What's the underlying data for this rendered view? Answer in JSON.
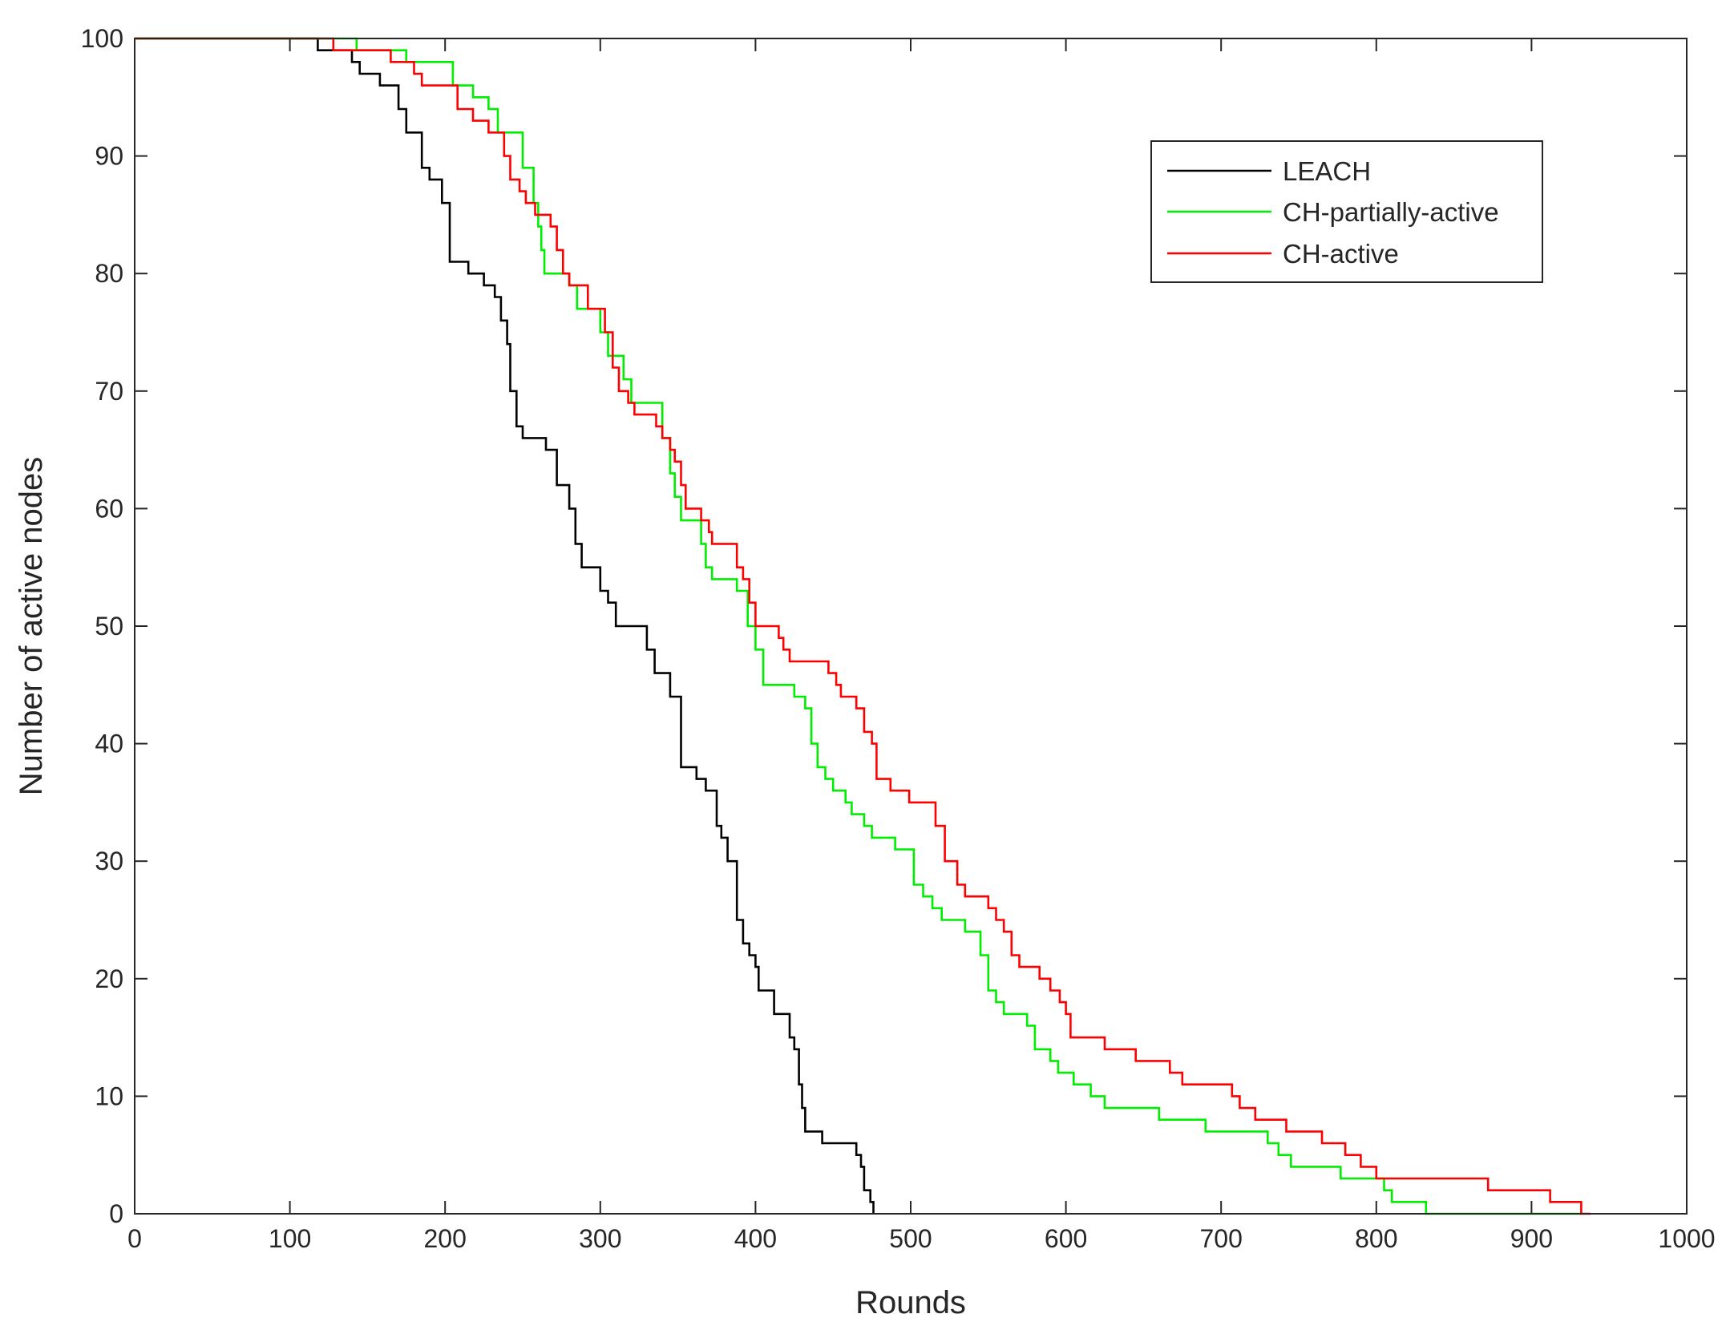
{
  "chart_data": {
    "type": "line",
    "title": "",
    "xlabel": "Rounds",
    "ylabel": "Number of active nodes",
    "xlim": [
      0,
      1000
    ],
    "ylim": [
      0,
      100
    ],
    "xticks": [
      0,
      100,
      200,
      300,
      400,
      500,
      600,
      700,
      800,
      900,
      1000
    ],
    "yticks": [
      0,
      10,
      20,
      30,
      40,
      50,
      60,
      70,
      80,
      90,
      100
    ],
    "grid": false,
    "legend": "top-right",
    "series": [
      {
        "name": "LEACH",
        "color": "#000000",
        "step": true,
        "points": [
          [
            0,
            100
          ],
          [
            116,
            100
          ],
          [
            118,
            99
          ],
          [
            135,
            99
          ],
          [
            140,
            98
          ],
          [
            145,
            97
          ],
          [
            155,
            97
          ],
          [
            158,
            96
          ],
          [
            167,
            96
          ],
          [
            170,
            94
          ],
          [
            175,
            92
          ],
          [
            180,
            92
          ],
          [
            185,
            89
          ],
          [
            190,
            88
          ],
          [
            195,
            88
          ],
          [
            198,
            86
          ],
          [
            201,
            86
          ],
          [
            203,
            81
          ],
          [
            212,
            81
          ],
          [
            215,
            80
          ],
          [
            220,
            80
          ],
          [
            225,
            79
          ],
          [
            230,
            79
          ],
          [
            232,
            78
          ],
          [
            236,
            76
          ],
          [
            240,
            74
          ],
          [
            242,
            70
          ],
          [
            246,
            67
          ],
          [
            250,
            66
          ],
          [
            262,
            66
          ],
          [
            265,
            65
          ],
          [
            272,
            62
          ],
          [
            277,
            62
          ],
          [
            280,
            60
          ],
          [
            284,
            57
          ],
          [
            288,
            55
          ],
          [
            295,
            55
          ],
          [
            300,
            53
          ],
          [
            305,
            52
          ],
          [
            310,
            50
          ],
          [
            325,
            50
          ],
          [
            330,
            48
          ],
          [
            335,
            46
          ],
          [
            340,
            46
          ],
          [
            345,
            44
          ],
          [
            350,
            44
          ],
          [
            352,
            38
          ],
          [
            358,
            38
          ],
          [
            362,
            37
          ],
          [
            368,
            36
          ],
          [
            372,
            36
          ],
          [
            375,
            33
          ],
          [
            378,
            32
          ],
          [
            382,
            30
          ],
          [
            386,
            30
          ],
          [
            388,
            25
          ],
          [
            392,
            23
          ],
          [
            396,
            22
          ],
          [
            400,
            21
          ],
          [
            402,
            19
          ],
          [
            410,
            19
          ],
          [
            412,
            17
          ],
          [
            418,
            17
          ],
          [
            422,
            15
          ],
          [
            425,
            14
          ],
          [
            428,
            11
          ],
          [
            430,
            9
          ],
          [
            432,
            7
          ],
          [
            440,
            7
          ],
          [
            443,
            6
          ],
          [
            462,
            6
          ],
          [
            465,
            5
          ],
          [
            468,
            4
          ],
          [
            470,
            2
          ],
          [
            474,
            1
          ],
          [
            476,
            0
          ]
        ]
      },
      {
        "name": "CH-partially-active",
        "color": "#00ee00",
        "step": true,
        "points": [
          [
            0,
            100
          ],
          [
            140,
            100
          ],
          [
            143,
            99
          ],
          [
            173,
            99
          ],
          [
            175,
            98
          ],
          [
            202,
            98
          ],
          [
            205,
            96
          ],
          [
            215,
            96
          ],
          [
            218,
            95
          ],
          [
            224,
            95
          ],
          [
            228,
            94
          ],
          [
            234,
            92
          ],
          [
            245,
            92
          ],
          [
            250,
            89
          ],
          [
            257,
            86
          ],
          [
            260,
            84
          ],
          [
            262,
            82
          ],
          [
            264,
            80
          ],
          [
            275,
            80
          ],
          [
            280,
            79
          ],
          [
            285,
            77
          ],
          [
            300,
            75
          ],
          [
            305,
            73
          ],
          [
            315,
            71
          ],
          [
            320,
            69
          ],
          [
            335,
            69
          ],
          [
            340,
            66
          ],
          [
            345,
            63
          ],
          [
            348,
            61
          ],
          [
            352,
            59
          ],
          [
            358,
            59
          ],
          [
            365,
            57
          ],
          [
            368,
            55
          ],
          [
            372,
            54
          ],
          [
            385,
            54
          ],
          [
            388,
            53
          ],
          [
            395,
            50
          ],
          [
            400,
            48
          ],
          [
            405,
            45
          ],
          [
            420,
            45
          ],
          [
            425,
            44
          ],
          [
            432,
            43
          ],
          [
            436,
            40
          ],
          [
            440,
            38
          ],
          [
            445,
            37
          ],
          [
            450,
            36
          ],
          [
            458,
            35
          ],
          [
            462,
            34
          ],
          [
            470,
            33
          ],
          [
            475,
            32
          ],
          [
            485,
            32
          ],
          [
            490,
            31
          ],
          [
            495,
            31
          ],
          [
            502,
            28
          ],
          [
            508,
            27
          ],
          [
            514,
            26
          ],
          [
            520,
            25
          ],
          [
            530,
            25
          ],
          [
            535,
            24
          ],
          [
            540,
            24
          ],
          [
            545,
            22
          ],
          [
            550,
            19
          ],
          [
            555,
            18
          ],
          [
            560,
            17
          ],
          [
            568,
            17
          ],
          [
            575,
            16
          ],
          [
            580,
            14
          ],
          [
            590,
            13
          ],
          [
            595,
            12
          ],
          [
            600,
            12
          ],
          [
            605,
            11
          ],
          [
            612,
            11
          ],
          [
            616,
            10
          ],
          [
            625,
            9
          ],
          [
            655,
            9
          ],
          [
            660,
            8
          ],
          [
            685,
            8
          ],
          [
            690,
            7
          ],
          [
            725,
            7
          ],
          [
            730,
            6
          ],
          [
            737,
            5
          ],
          [
            745,
            4
          ],
          [
            770,
            4
          ],
          [
            777,
            3
          ],
          [
            800,
            3
          ],
          [
            805,
            2
          ],
          [
            810,
            1
          ],
          [
            828,
            1
          ],
          [
            832,
            0
          ],
          [
            932,
            0
          ]
        ]
      },
      {
        "name": "CH-active",
        "color": "#ff0000",
        "step": true,
        "points": [
          [
            0,
            100
          ],
          [
            125,
            100
          ],
          [
            128,
            99
          ],
          [
            160,
            99
          ],
          [
            165,
            98
          ],
          [
            178,
            98
          ],
          [
            180,
            97
          ],
          [
            185,
            96
          ],
          [
            203,
            96
          ],
          [
            208,
            94
          ],
          [
            215,
            94
          ],
          [
            218,
            93
          ],
          [
            228,
            92
          ],
          [
            235,
            92
          ],
          [
            238,
            90
          ],
          [
            242,
            88
          ],
          [
            248,
            87
          ],
          [
            252,
            86
          ],
          [
            258,
            85
          ],
          [
            265,
            85
          ],
          [
            268,
            84
          ],
          [
            272,
            82
          ],
          [
            276,
            80
          ],
          [
            280,
            79
          ],
          [
            290,
            79
          ],
          [
            292,
            77
          ],
          [
            300,
            77
          ],
          [
            303,
            75
          ],
          [
            308,
            72
          ],
          [
            312,
            70
          ],
          [
            318,
            69
          ],
          [
            322,
            68
          ],
          [
            332,
            68
          ],
          [
            336,
            67
          ],
          [
            340,
            66
          ],
          [
            345,
            65
          ],
          [
            348,
            64
          ],
          [
            352,
            62
          ],
          [
            355,
            60
          ],
          [
            360,
            60
          ],
          [
            365,
            59
          ],
          [
            370,
            58
          ],
          [
            372,
            57
          ],
          [
            385,
            57
          ],
          [
            388,
            55
          ],
          [
            392,
            54
          ],
          [
            396,
            52
          ],
          [
            400,
            50
          ],
          [
            412,
            50
          ],
          [
            415,
            49
          ],
          [
            418,
            48
          ],
          [
            422,
            47
          ],
          [
            442,
            47
          ],
          [
            447,
            46
          ],
          [
            452,
            45
          ],
          [
            455,
            44
          ],
          [
            460,
            44
          ],
          [
            465,
            43
          ],
          [
            470,
            41
          ],
          [
            475,
            40
          ],
          [
            478,
            37
          ],
          [
            484,
            37
          ],
          [
            487,
            36
          ],
          [
            495,
            36
          ],
          [
            499,
            35
          ],
          [
            512,
            35
          ],
          [
            516,
            33
          ],
          [
            522,
            30
          ],
          [
            530,
            28
          ],
          [
            535,
            27
          ],
          [
            545,
            27
          ],
          [
            550,
            26
          ],
          [
            555,
            25
          ],
          [
            560,
            24
          ],
          [
            565,
            22
          ],
          [
            570,
            21
          ],
          [
            578,
            21
          ],
          [
            583,
            20
          ],
          [
            590,
            19
          ],
          [
            596,
            18
          ],
          [
            600,
            17
          ],
          [
            603,
            15
          ],
          [
            620,
            15
          ],
          [
            625,
            14
          ],
          [
            640,
            14
          ],
          [
            645,
            13
          ],
          [
            662,
            13
          ],
          [
            667,
            12
          ],
          [
            675,
            11
          ],
          [
            702,
            11
          ],
          [
            707,
            10
          ],
          [
            712,
            9
          ],
          [
            722,
            8
          ],
          [
            738,
            8
          ],
          [
            742,
            7
          ],
          [
            760,
            7
          ],
          [
            765,
            6
          ],
          [
            780,
            5
          ],
          [
            790,
            4
          ],
          [
            795,
            4
          ],
          [
            800,
            3
          ],
          [
            868,
            3
          ],
          [
            872,
            2
          ],
          [
            908,
            2
          ],
          [
            912,
            1
          ],
          [
            928,
            1
          ],
          [
            932,
            0
          ],
          [
            938,
            0
          ]
        ]
      }
    ]
  }
}
